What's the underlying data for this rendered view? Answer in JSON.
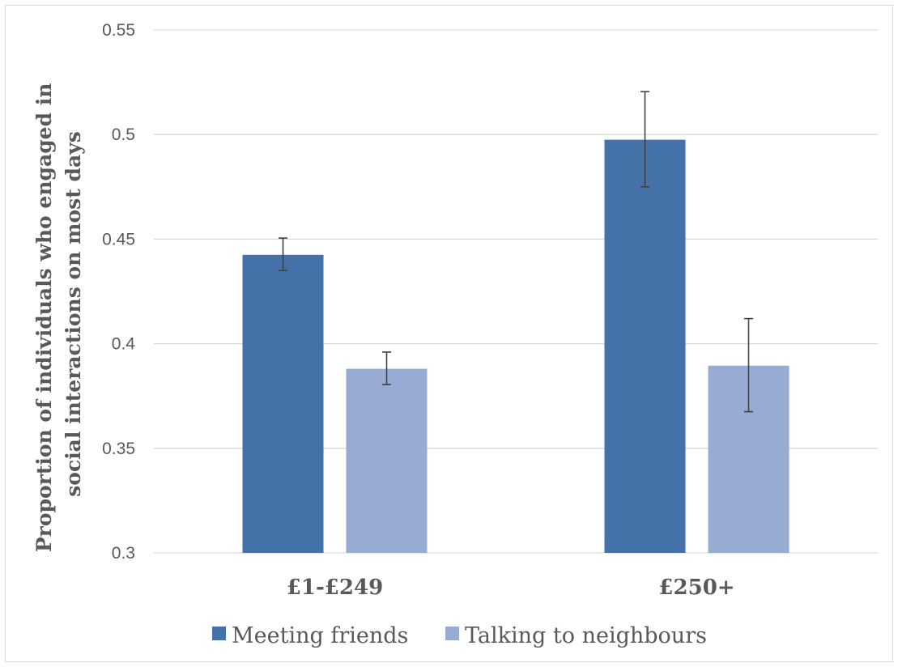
{
  "chart_data": {
    "type": "bar",
    "title": "",
    "xlabel": "",
    "ylabel_lines": [
      "Proportion of  individuals who engaged in",
      "social interactions on most days"
    ],
    "categories": [
      "£1-£249",
      "£250+"
    ],
    "series": [
      {
        "name": "Meeting friends",
        "color": "#4472a8",
        "values": [
          0.4425,
          0.4975
        ],
        "error_low": [
          0.435,
          0.475
        ],
        "error_high": [
          0.4505,
          0.5205
        ]
      },
      {
        "name": "Talking to neighbours",
        "color": "#97abd3",
        "values": [
          0.388,
          0.3895
        ],
        "error_low": [
          0.3805,
          0.3675
        ],
        "error_high": [
          0.396,
          0.412
        ]
      }
    ],
    "ylim": [
      0.3,
      0.55
    ],
    "yticks": [
      0.3,
      0.35,
      0.4,
      0.45,
      0.5,
      0.55
    ],
    "ytick_labels": [
      "0.3",
      "0.35",
      "0.4",
      "0.45",
      "0.5",
      "0.55"
    ],
    "grid": true,
    "legend_position": "bottom",
    "colors": {
      "gridline": "#d9d9d9",
      "text": "#595959",
      "error_bar": "#404040"
    }
  }
}
